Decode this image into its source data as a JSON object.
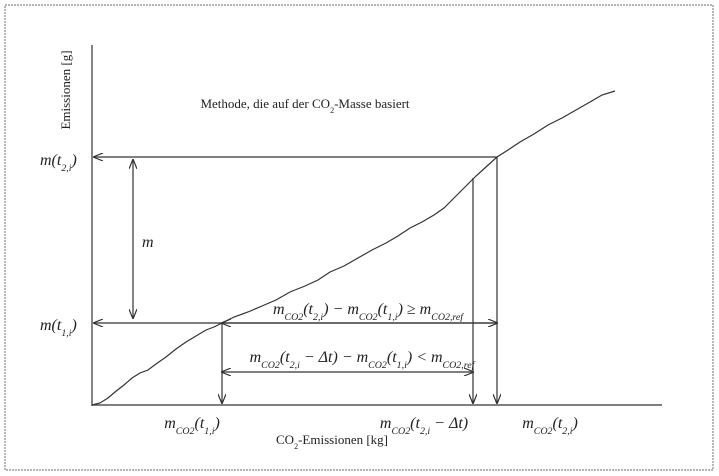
{
  "title": [
    "Methode, die auf der CO",
    "2",
    "-Masse basiert"
  ],
  "y_axis_label": [
    "Emissionen [g]"
  ],
  "x_axis_label": [
    "CO",
    "2",
    "-Emissionen  [kg]"
  ],
  "y_labels": [
    [
      "m(t",
      "2,i",
      ")"
    ],
    [
      "m(t",
      "1,i",
      ")"
    ]
  ],
  "span_label": [
    "m"
  ],
  "formulas": [
    [
      "m",
      "CO2",
      "(t",
      "2,i",
      ") − m",
      "CO2",
      "(t",
      "1,i",
      ") ≥ m",
      "CO2,ref"
    ],
    [
      "m",
      "CO2",
      "(t",
      "2,i",
      " − Δt) − m",
      "CO2",
      "(t",
      "1,i",
      ") < m",
      "CO2,ref"
    ]
  ],
  "x_labels": [
    [
      "m",
      "CO2",
      "(t",
      "1,i",
      ")"
    ],
    [
      "m",
      "CO2",
      "(t",
      "2,i",
      " − Δt)"
    ],
    [
      "m",
      "CO2",
      "(t",
      "2,i",
      ")"
    ]
  ]
}
